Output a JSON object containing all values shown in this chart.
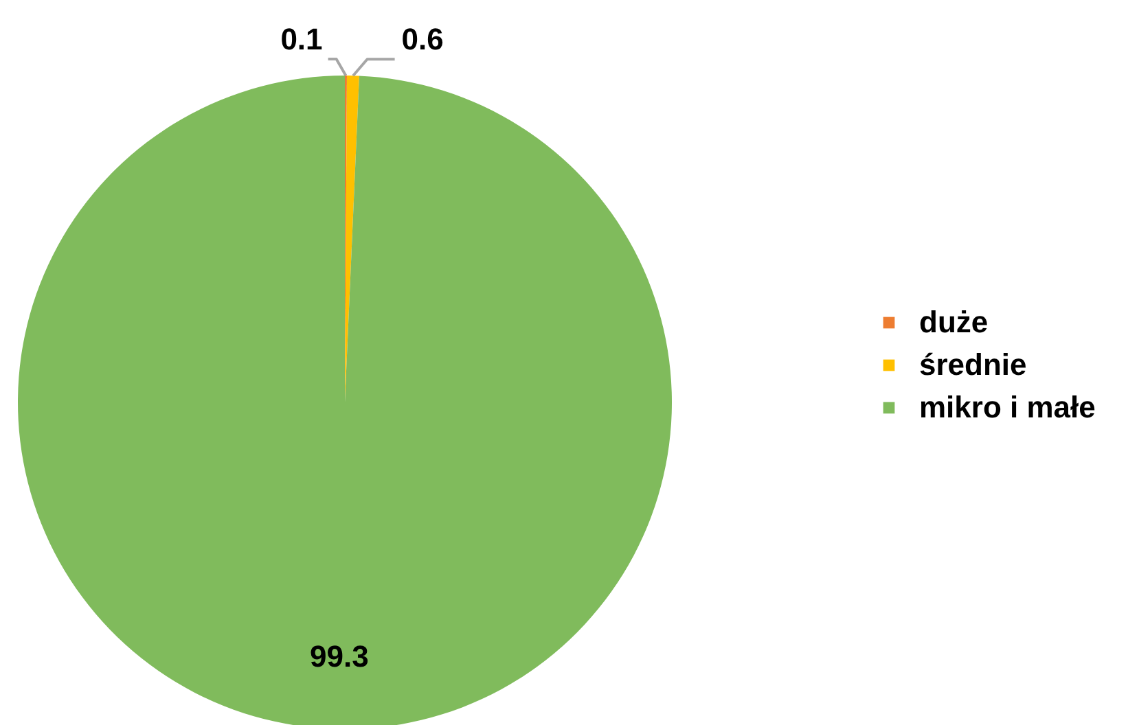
{
  "chart_data": {
    "type": "pie",
    "categories": [
      "duże",
      "średnie",
      "mikro i małe"
    ],
    "values": [
      0.1,
      0.6,
      99.3
    ],
    "colors": [
      "#ed7d31",
      "#ffc000",
      "#80bb5c"
    ],
    "data_labels": true,
    "legend": "right"
  }
}
